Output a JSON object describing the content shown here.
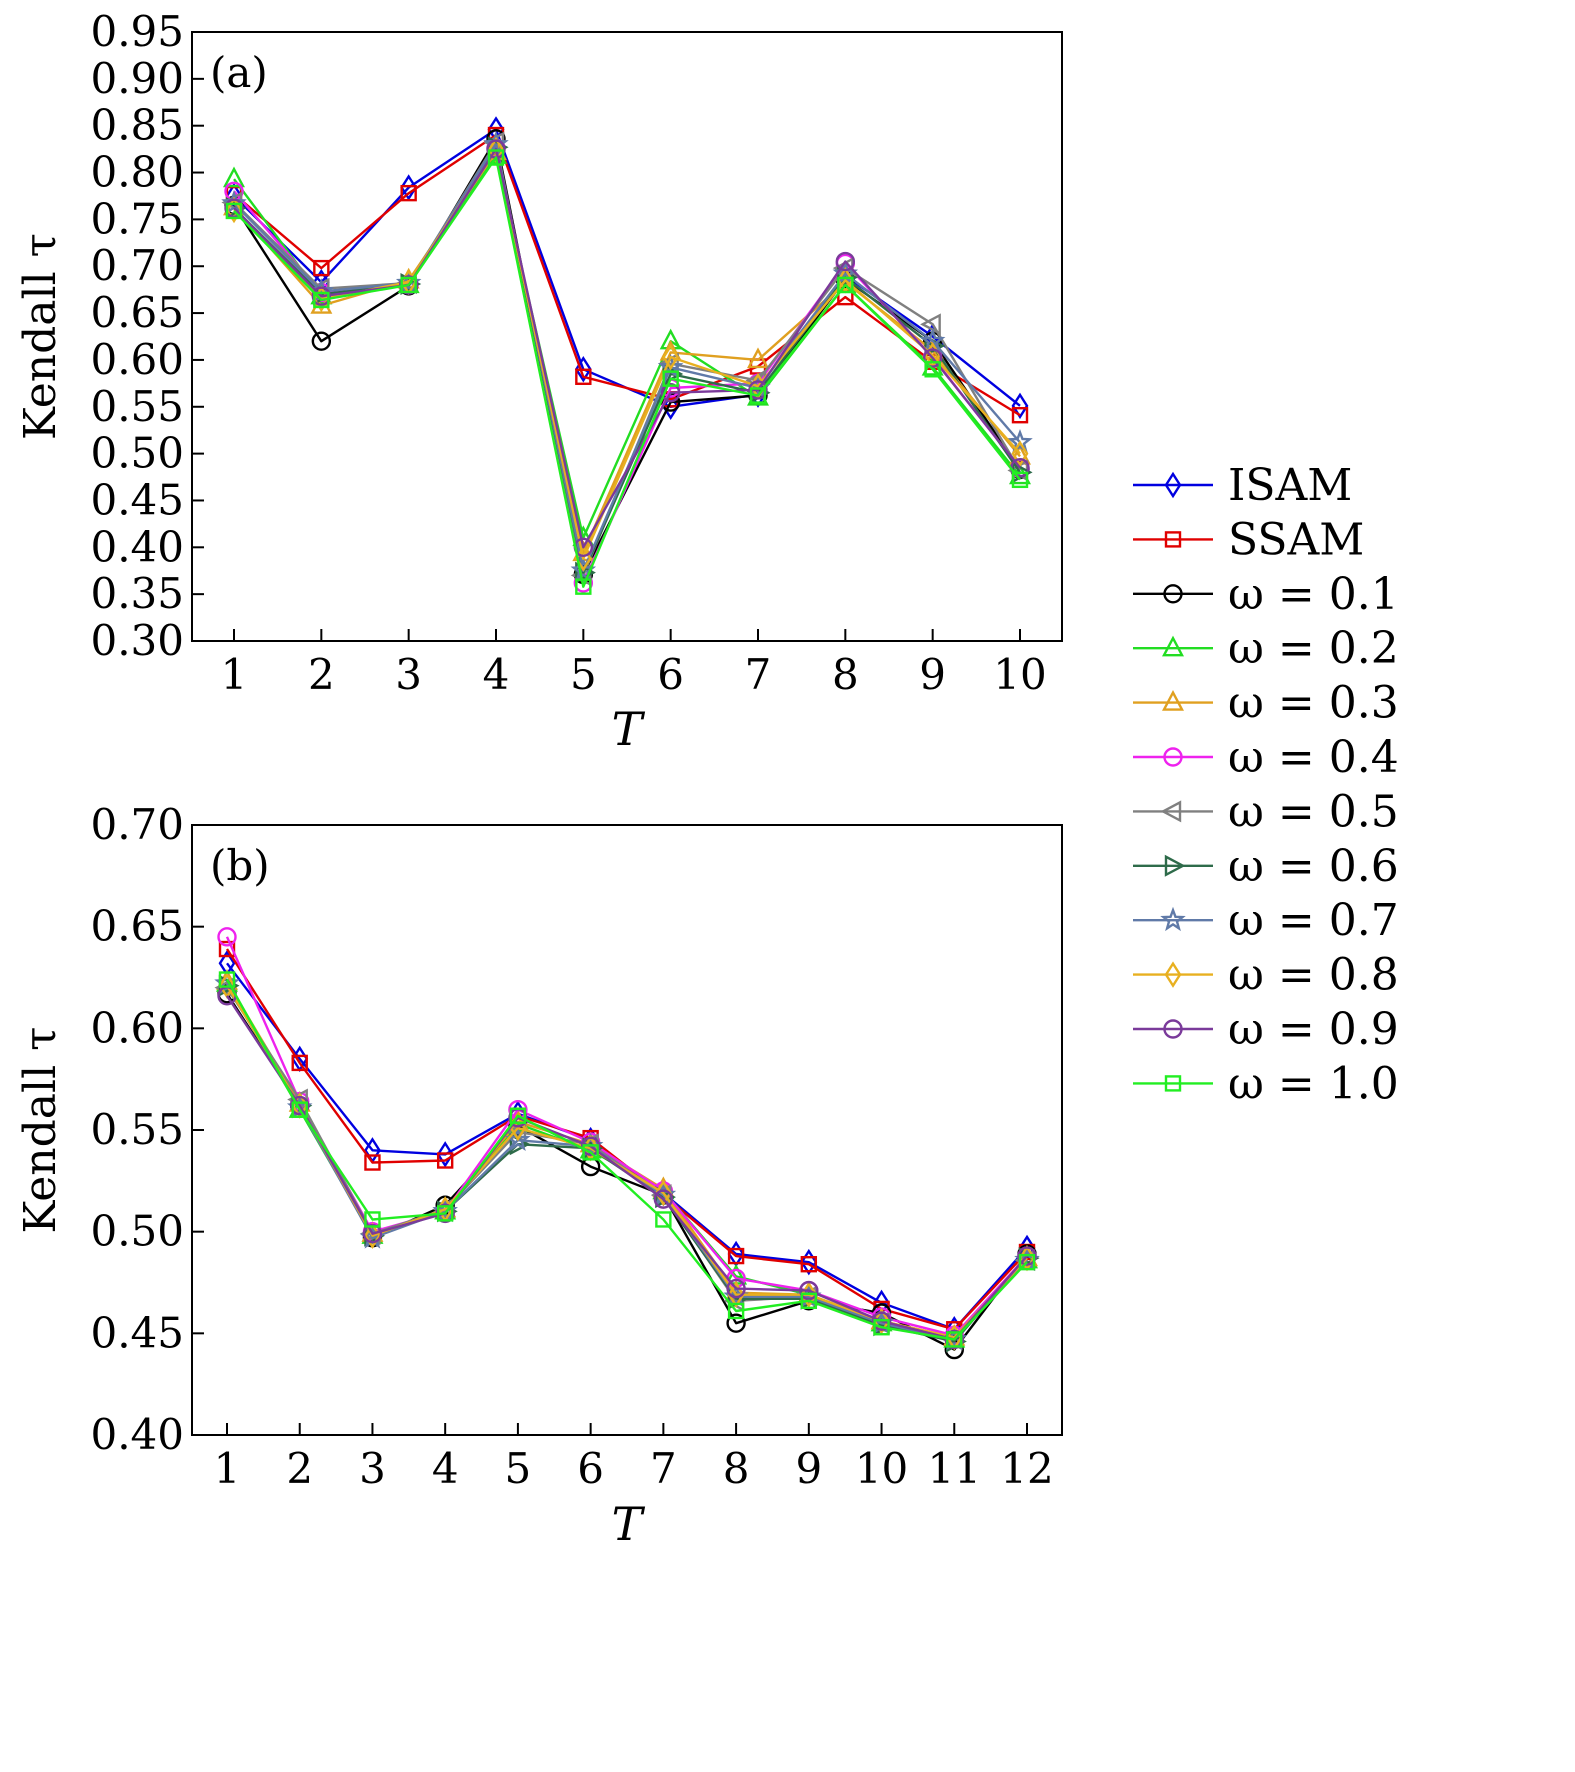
{
  "series_styles": [
    {
      "name": "ISAM",
      "label": "ISAM",
      "color": "#0000e0",
      "marker": "diamond"
    },
    {
      "name": "SSAM",
      "label": "SSAM",
      "color": "#e00000",
      "marker": "square"
    },
    {
      "name": "ω = 0.1",
      "label": "ω = 0.1",
      "color": "#000000",
      "marker": "circle"
    },
    {
      "name": "ω = 0.2",
      "label": "ω = 0.2",
      "color": "#22dd22",
      "marker": "triangle-up"
    },
    {
      "name": "ω = 0.3",
      "label": "ω = 0.3",
      "color": "#e0a020",
      "marker": "triangle-up"
    },
    {
      "name": "ω = 0.4",
      "label": "ω = 0.4",
      "color": "#ee22ee",
      "marker": "circle"
    },
    {
      "name": "ω = 0.5",
      "label": "ω = 0.5",
      "color": "#808080",
      "marker": "triangle-left"
    },
    {
      "name": "ω = 0.6",
      "label": "ω = 0.6",
      "color": "#2e6b4a",
      "marker": "triangle-right"
    },
    {
      "name": "ω = 0.7",
      "label": "ω = 0.7",
      "color": "#607aa8",
      "marker": "star"
    },
    {
      "name": "ω = 0.8",
      "label": "ω = 0.8",
      "color": "#e8b020",
      "marker": "diamond"
    },
    {
      "name": "ω = 0.9",
      "label": "ω = 0.9",
      "color": "#7a3a9a",
      "marker": "circle"
    },
    {
      "name": "ω = 1.0",
      "label": "ω = 1.0",
      "color": "#22ee22",
      "marker": "square"
    }
  ],
  "legend": {
    "placement": "right-center"
  },
  "chart_data": [
    {
      "type": "line",
      "panel_label": "(a)",
      "xlabel": "T",
      "ylabel": "Kendall τ",
      "xlim": [
        1,
        10
      ],
      "ylim": [
        0.3,
        0.95
      ],
      "x": [
        1,
        2,
        3,
        4,
        5,
        6,
        7,
        8,
        9,
        10
      ],
      "x_ticks": [
        "1",
        "2",
        "3",
        "4",
        "5",
        "6",
        "7",
        "8",
        "9",
        "10"
      ],
      "y_ticks": [
        "0.30",
        "0.35",
        "0.40",
        "0.45",
        "0.50",
        "0.55",
        "0.60",
        "0.65",
        "0.70",
        "0.75",
        "0.80",
        "0.85",
        "0.90",
        "0.95"
      ],
      "y_tick_values": [
        0.3,
        0.35,
        0.4,
        0.45,
        0.5,
        0.55,
        0.6,
        0.65,
        0.7,
        0.75,
        0.8,
        0.85,
        0.9,
        0.95
      ],
      "series": [
        {
          "name": "ISAM",
          "values": [
            0.775,
            0.683,
            0.784,
            0.846,
            0.59,
            0.55,
            0.563,
            0.69,
            0.625,
            0.551
          ]
        },
        {
          "name": "SSAM",
          "values": [
            0.777,
            0.698,
            0.778,
            0.84,
            0.582,
            0.558,
            0.593,
            0.667,
            0.598,
            0.541
          ]
        },
        {
          "name": "ω = 0.1",
          "values": [
            0.765,
            0.62,
            0.679,
            0.836,
            0.371,
            0.555,
            0.562,
            0.686,
            0.62,
            0.483
          ]
        },
        {
          "name": "ω = 0.2",
          "values": [
            0.793,
            0.668,
            0.68,
            0.818,
            0.41,
            0.62,
            0.56,
            0.68,
            0.592,
            0.476
          ]
        },
        {
          "name": "ω = 0.3",
          "values": [
            0.763,
            0.658,
            0.685,
            0.822,
            0.394,
            0.608,
            0.6,
            0.683,
            0.61,
            0.497
          ]
        },
        {
          "name": "ω = 0.4",
          "values": [
            0.78,
            0.672,
            0.681,
            0.826,
            0.362,
            0.57,
            0.575,
            0.703,
            0.603,
            0.484
          ]
        },
        {
          "name": "ω = 0.5",
          "values": [
            0.768,
            0.676,
            0.682,
            0.832,
            0.37,
            0.596,
            0.578,
            0.698,
            0.638,
            0.482
          ]
        },
        {
          "name": "ω = 0.6",
          "values": [
            0.762,
            0.67,
            0.681,
            0.827,
            0.373,
            0.585,
            0.565,
            0.688,
            0.615,
            0.48
          ]
        },
        {
          "name": "ω = 0.7",
          "values": [
            0.767,
            0.673,
            0.682,
            0.83,
            0.375,
            0.592,
            0.57,
            0.692,
            0.62,
            0.512
          ]
        },
        {
          "name": "ω = 0.8",
          "values": [
            0.76,
            0.665,
            0.683,
            0.824,
            0.388,
            0.603,
            0.572,
            0.685,
            0.605,
            0.5
          ]
        },
        {
          "name": "ω = 0.9",
          "values": [
            0.762,
            0.668,
            0.68,
            0.825,
            0.4,
            0.565,
            0.568,
            0.705,
            0.602,
            0.485
          ]
        },
        {
          "name": "ω = 1.0",
          "values": [
            0.759,
            0.664,
            0.68,
            0.816,
            0.358,
            0.58,
            0.562,
            0.68,
            0.59,
            0.472
          ]
        }
      ]
    },
    {
      "type": "line",
      "panel_label": "(b)",
      "xlabel": "T",
      "ylabel": "Kendall τ",
      "xlim": [
        1,
        12
      ],
      "ylim": [
        0.4,
        0.7
      ],
      "x": [
        1,
        2,
        3,
        4,
        5,
        6,
        7,
        8,
        9,
        10,
        11,
        12
      ],
      "x_ticks": [
        "1",
        "2",
        "3",
        "4",
        "5",
        "6",
        "7",
        "8",
        "9",
        "10",
        "11",
        "12"
      ],
      "y_ticks": [
        "0.40",
        "0.45",
        "0.50",
        "0.55",
        "0.60",
        "0.65",
        "0.70"
      ],
      "y_tick_values": [
        0.4,
        0.45,
        0.5,
        0.55,
        0.6,
        0.65,
        0.7
      ],
      "series": [
        {
          "name": "ISAM",
          "values": [
            0.632,
            0.585,
            0.54,
            0.538,
            0.558,
            0.545,
            0.519,
            0.489,
            0.485,
            0.465,
            0.452,
            0.492
          ]
        },
        {
          "name": "SSAM",
          "values": [
            0.639,
            0.583,
            0.534,
            0.535,
            0.557,
            0.546,
            0.518,
            0.488,
            0.484,
            0.462,
            0.452,
            0.49
          ]
        },
        {
          "name": "ω = 0.1",
          "values": [
            0.617,
            0.562,
            0.497,
            0.513,
            0.552,
            0.532,
            0.518,
            0.455,
            0.466,
            0.46,
            0.442,
            0.489
          ]
        },
        {
          "name": "ω = 0.2",
          "values": [
            0.622,
            0.56,
            0.498,
            0.51,
            0.553,
            0.54,
            0.52,
            0.478,
            0.469,
            0.455,
            0.447,
            0.486
          ]
        },
        {
          "name": "ω = 0.3",
          "values": [
            0.623,
            0.563,
            0.499,
            0.511,
            0.554,
            0.543,
            0.521,
            0.47,
            0.469,
            0.456,
            0.448,
            0.487
          ]
        },
        {
          "name": "ω = 0.4",
          "values": [
            0.645,
            0.564,
            0.5,
            0.51,
            0.56,
            0.544,
            0.52,
            0.477,
            0.471,
            0.458,
            0.449,
            0.488
          ]
        },
        {
          "name": "ω = 0.5",
          "values": [
            0.62,
            0.565,
            0.499,
            0.511,
            0.549,
            0.543,
            0.518,
            0.466,
            0.468,
            0.455,
            0.447,
            0.486
          ]
        },
        {
          "name": "ω = 0.6",
          "values": [
            0.621,
            0.562,
            0.498,
            0.51,
            0.543,
            0.541,
            0.517,
            0.467,
            0.467,
            0.454,
            0.446,
            0.487
          ]
        },
        {
          "name": "ω = 0.7",
          "values": [
            0.622,
            0.561,
            0.497,
            0.51,
            0.545,
            0.542,
            0.518,
            0.468,
            0.468,
            0.455,
            0.447,
            0.486
          ]
        },
        {
          "name": "ω = 0.8",
          "values": [
            0.621,
            0.562,
            0.498,
            0.511,
            0.551,
            0.541,
            0.519,
            0.469,
            0.469,
            0.456,
            0.448,
            0.487
          ]
        },
        {
          "name": "ω = 0.9",
          "values": [
            0.616,
            0.562,
            0.499,
            0.509,
            0.556,
            0.542,
            0.516,
            0.472,
            0.471,
            0.456,
            0.447,
            0.488
          ]
        },
        {
          "name": "ω = 1.0",
          "values": [
            0.624,
            0.56,
            0.506,
            0.509,
            0.557,
            0.539,
            0.506,
            0.461,
            0.466,
            0.453,
            0.447,
            0.485
          ]
        }
      ]
    }
  ]
}
